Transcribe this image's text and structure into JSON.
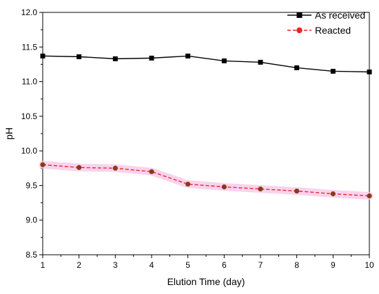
{
  "chart_data": {
    "type": "line",
    "xlabel": "Elution Time (day)",
    "ylabel": "pH",
    "xlim": [
      1,
      10
    ],
    "ylim": [
      8.5,
      12.0
    ],
    "x": [
      1,
      2,
      3,
      4,
      5,
      6,
      7,
      8,
      9,
      10
    ],
    "xticks": [
      "1",
      "2",
      "3",
      "4",
      "5",
      "6",
      "7",
      "8",
      "9",
      "10"
    ],
    "yticks": [
      "8.5",
      "9.0",
      "9.5",
      "10.0",
      "10.5",
      "11.0",
      "11.5",
      "12.0"
    ],
    "grid": false,
    "legend_position": "top-right",
    "series": [
      {
        "name": "As received",
        "values": [
          11.37,
          11.36,
          11.33,
          11.34,
          11.37,
          11.3,
          11.28,
          11.2,
          11.15,
          11.14
        ],
        "color": "#000000",
        "marker": "square",
        "line_style": "solid"
      },
      {
        "name": "Reacted",
        "values": [
          9.8,
          9.76,
          9.75,
          9.7,
          9.52,
          9.48,
          9.45,
          9.42,
          9.38,
          9.35
        ],
        "color": "#e8242a",
        "marker_color": "#8a3a1c",
        "highlight_color": "#f8c8e8",
        "marker": "circle",
        "line_style": "dashed"
      }
    ]
  }
}
